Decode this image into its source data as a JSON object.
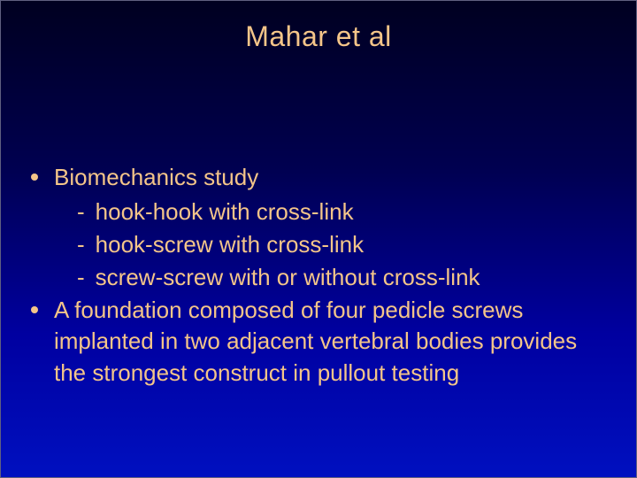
{
  "title": {
    "text": "Mahar et al",
    "color": "#f4c589",
    "fontsize": 32
  },
  "body": {
    "text_color": "#f4c589",
    "bullet_color": "#f4c589",
    "fontsize": 26,
    "items": [
      {
        "text": "Biomechanics study",
        "subitems": [
          {
            "text": "hook-hook with cross-link"
          },
          {
            "text": "hook-screw with cross-link"
          },
          {
            "text": "screw-screw with or without cross-link"
          }
        ]
      },
      {
        "text": "A foundation composed of four pedicle screws implanted in two adjacent vertebral bodies provides the strongest construct in pullout testing",
        "subitems": []
      }
    ]
  },
  "background": {
    "gradient_top": "#000020",
    "gradient_mid1": "#000050",
    "gradient_mid2": "#0000a0",
    "gradient_bottom": "#0010c0",
    "border_color": "#606080"
  }
}
